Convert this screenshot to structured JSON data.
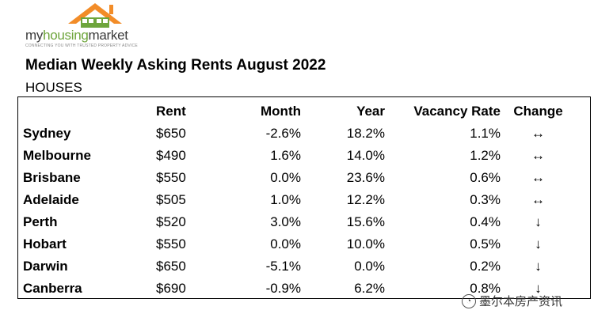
{
  "logo": {
    "brand_part1": "my",
    "brand_part2": "housing",
    "brand_part3": "market",
    "tagline": "CONNECTING YOU WITH TRUSTED PROPERTY ADVICE",
    "colors": {
      "roof": "#f28c28",
      "house": "#6ea53c"
    }
  },
  "title": "Median Weekly Asking Rents August 2022",
  "subtitle": "HOUSES",
  "table": {
    "headers": {
      "city": "",
      "rent": "Rent",
      "month": "Month",
      "year": "Year",
      "vacancy": "Vacancy Rate",
      "change": "Change"
    },
    "rows": [
      {
        "city": "Sydney",
        "rent": "$650",
        "month": "-2.6%",
        "year": "18.2%",
        "vacancy": "1.1%",
        "change": "↔"
      },
      {
        "city": "Melbourne",
        "rent": "$490",
        "month": "1.6%",
        "year": "14.0%",
        "vacancy": "1.2%",
        "change": "↔"
      },
      {
        "city": "Brisbane",
        "rent": "$550",
        "month": "0.0%",
        "year": "23.6%",
        "vacancy": "0.6%",
        "change": "↔"
      },
      {
        "city": "Adelaide",
        "rent": "$505",
        "month": "1.0%",
        "year": "12.2%",
        "vacancy": "0.3%",
        "change": "↔"
      },
      {
        "city": "Perth",
        "rent": "$520",
        "month": "3.0%",
        "year": "15.6%",
        "vacancy": "0.4%",
        "change": "↓"
      },
      {
        "city": "Hobart",
        "rent": "$550",
        "month": "0.0%",
        "year": "10.0%",
        "vacancy": "0.5%",
        "change": "↓"
      },
      {
        "city": "Darwin",
        "rent": "$650",
        "month": "-5.1%",
        "year": "0.0%",
        "vacancy": "0.2%",
        "change": "↓"
      },
      {
        "city": "Canberra",
        "rent": "$690",
        "month": "-0.9%",
        "year": "6.2%",
        "vacancy": "0.8%",
        "change": "↓"
      }
    ]
  },
  "watermark": {
    "text": "墨尔本房产资讯",
    "icon": "wechat-icon"
  }
}
